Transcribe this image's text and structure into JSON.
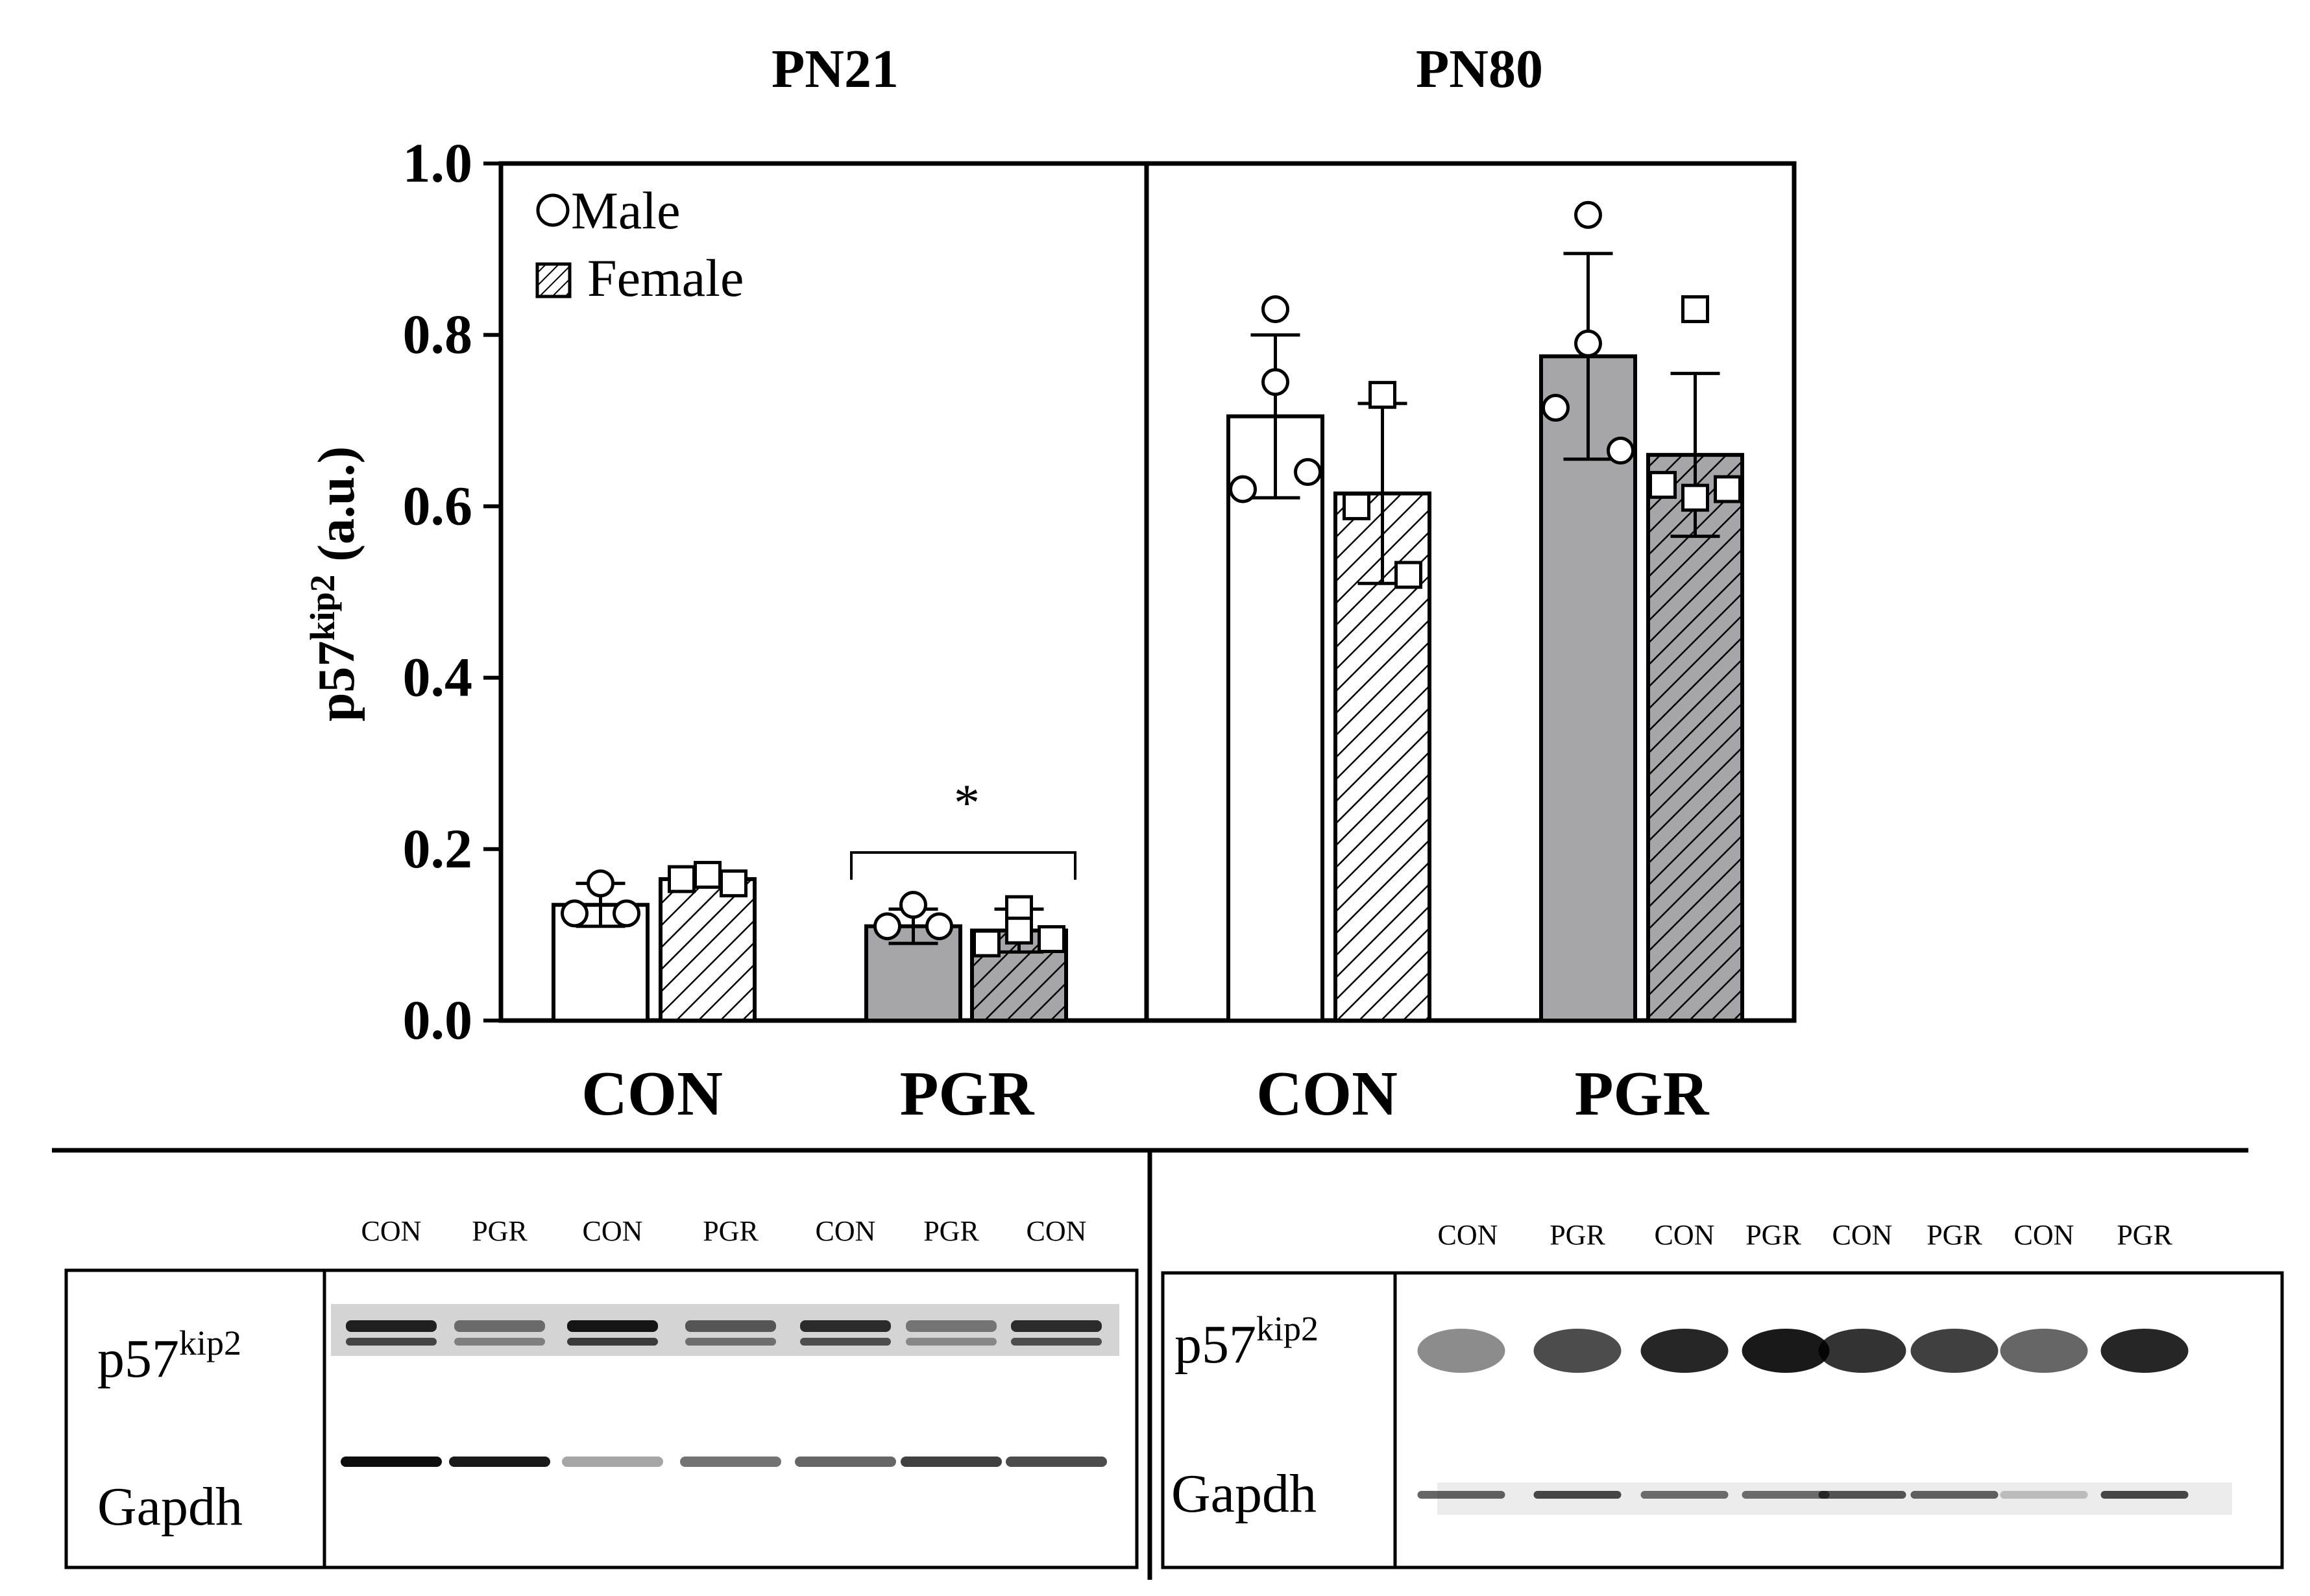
{
  "chart_data": {
    "type": "bar",
    "ylabel": {
      "main": "p57",
      "sup": "kip2",
      "unit": " (a.u.)"
    },
    "ylim": [
      0,
      1.0
    ],
    "yticks": [
      "0.0",
      "0.2",
      "0.4",
      "0.6",
      "0.8",
      "1.0"
    ],
    "legend": {
      "position": "top-left",
      "entries": [
        "Male",
        "Female"
      ]
    },
    "panels": [
      {
        "title": "PN21",
        "groups": [
          {
            "label": "CON",
            "bars": [
              {
                "sex": "Male",
                "fill": "#ffffff",
                "mean": 0.135,
                "sd": 0.025,
                "points": [
                  0.16,
                  0.125,
                  0.125
                ]
              },
              {
                "sex": "Female",
                "fill": "#ffffff",
                "mean": 0.165,
                "sd": 0.008,
                "points": [
                  0.17,
                  0.165,
                  0.16
                ]
              }
            ]
          },
          {
            "label": "PGR",
            "bars": [
              {
                "sex": "Male",
                "fill": "#a6a6a8",
                "mean": 0.11,
                "sd": 0.02,
                "points": [
                  0.135,
                  0.11,
                  0.11
                ]
              },
              {
                "sex": "Female",
                "fill": "#a6a6a8",
                "mean": 0.105,
                "sd": 0.025,
                "points": [
                  0.13,
                  0.105,
                  0.09,
                  0.095
                ]
              }
            ]
          }
        ],
        "significance": {
          "group": "PGR",
          "symbol": "*",
          "y": 0.2
        }
      },
      {
        "title": "PN80",
        "groups": [
          {
            "label": "CON",
            "bars": [
              {
                "sex": "Male",
                "fill": "#ffffff",
                "mean": 0.705,
                "sd": 0.095,
                "points": [
                  0.83,
                  0.745,
                  0.62,
                  0.64
                ]
              },
              {
                "sex": "Female",
                "fill": "#ffffff",
                "mean": 0.615,
                "sd": 0.105,
                "points": [
                  0.73,
                  0.6,
                  0.52
                ]
              }
            ]
          },
          {
            "label": "PGR",
            "bars": [
              {
                "sex": "Male",
                "fill": "#a6a6a8",
                "mean": 0.775,
                "sd": 0.12,
                "points": [
                  0.94,
                  0.79,
                  0.715,
                  0.665
                ]
              },
              {
                "sex": "Female",
                "fill": "#a6a6a8",
                "mean": 0.66,
                "sd": 0.095,
                "points": [
                  0.83,
                  0.61,
                  0.625,
                  0.62
                ]
              }
            ]
          }
        ]
      }
    ]
  },
  "blots": {
    "left": {
      "lanes": [
        "CON",
        "PGR",
        "CON",
        "PGR",
        "CON",
        "PGR",
        "CON"
      ],
      "row_labels": {
        "p57_main": "p57",
        "p57_sup": "kip2",
        "gapdh": "Gapdh"
      }
    },
    "right": {
      "lanes": [
        "CON",
        "PGR",
        "CON",
        "PGR",
        "CON",
        "PGR",
        "CON",
        "PGR"
      ],
      "row_labels": {
        "p57_main": "p57",
        "p57_sup": "kip2",
        "gapdh": "Gapdh"
      }
    }
  }
}
